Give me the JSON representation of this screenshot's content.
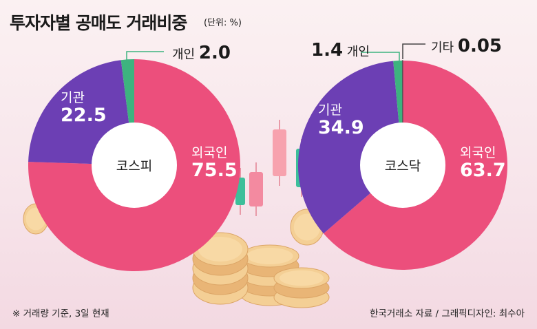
{
  "title": "투자자별 공매도 거래비중",
  "unit": "(단위: %)",
  "colors": {
    "foreign": "#ec4f7c",
    "institution": "#6c3fb4",
    "individual": "#3db37f",
    "other": "#555555"
  },
  "chart_data": [
    {
      "type": "pie",
      "name": "코스피",
      "categories": [
        "외국인",
        "기관",
        "개인"
      ],
      "values": [
        75.5,
        22.5,
        2.0
      ],
      "labels": {
        "foreign": "외국인",
        "foreign_v": "75.5",
        "inst": "기관",
        "inst_v": "22.5",
        "indiv": "개인",
        "indiv_v": "2.0"
      }
    },
    {
      "type": "pie",
      "name": "코스닥",
      "categories": [
        "외국인",
        "기관",
        "개인",
        "기타"
      ],
      "values": [
        63.7,
        34.9,
        1.4,
        0.05
      ],
      "labels": {
        "foreign": "외국인",
        "foreign_v": "63.7",
        "inst": "기관",
        "inst_v": "34.9",
        "indiv": "개인",
        "indiv_v": "1.4",
        "other": "기타",
        "other_v": "0.05"
      }
    }
  ],
  "footnote": "※ 거래량 기준, 3일 현재",
  "source": "한국거래소 자료 / 그래픽디자인: 최수아"
}
